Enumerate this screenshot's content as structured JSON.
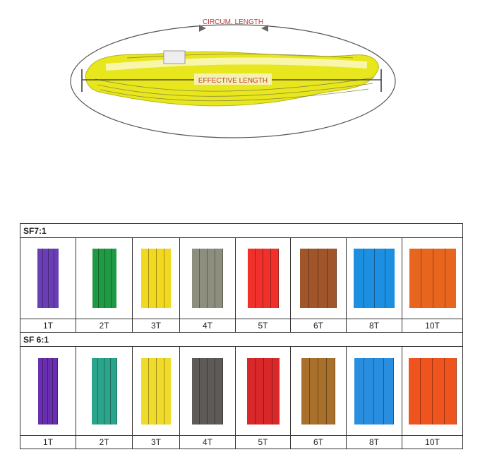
{
  "diagram": {
    "circum_label": "CIRCUM. LENGTH",
    "effective_label": "EFFECTIVE LENGTH",
    "sling_color": "#e8e61c",
    "label_color": "#c0393b"
  },
  "tables": [
    {
      "title": "SF7:1",
      "items": [
        {
          "label": "1T",
          "color": "#6a3fb5"
        },
        {
          "label": "2T",
          "color": "#1f9a43"
        },
        {
          "label": "3T",
          "color": "#f2d81e"
        },
        {
          "label": "4T",
          "color": "#8e8e7e"
        },
        {
          "label": "5T",
          "color": "#f0302a"
        },
        {
          "label": "6T",
          "color": "#a0552a"
        },
        {
          "label": "8T",
          "color": "#1c8fe0"
        },
        {
          "label": "10T",
          "color": "#e8651e"
        }
      ]
    },
    {
      "title": "SF 6:1",
      "items": [
        {
          "label": "1T",
          "color": "#6a2fb0"
        },
        {
          "label": "2T",
          "color": "#2aa58c"
        },
        {
          "label": "3T",
          "color": "#f0da2a"
        },
        {
          "label": "4T",
          "color": "#5e5a58"
        },
        {
          "label": "5T",
          "color": "#d8282a"
        },
        {
          "label": "6T",
          "color": "#a8702a"
        },
        {
          "label": "8T",
          "color": "#2a8ee0"
        },
        {
          "label": "10T",
          "color": "#f0541e"
        }
      ]
    }
  ]
}
